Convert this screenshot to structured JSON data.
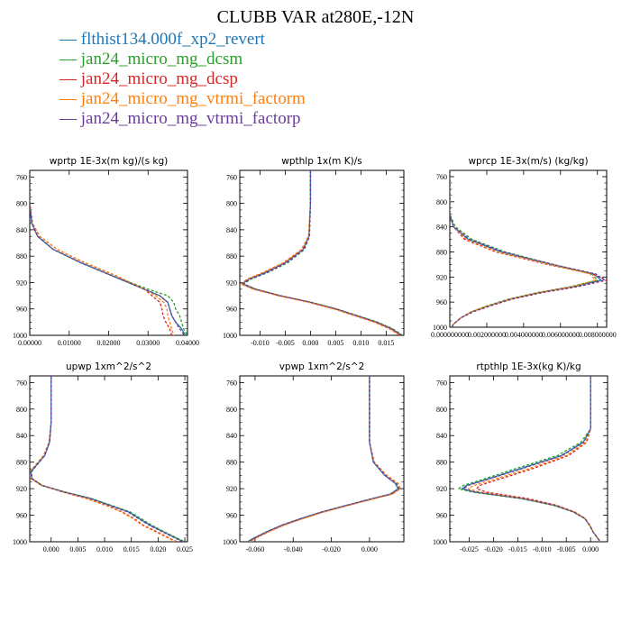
{
  "title": "CLUBB VAR at280E,-12N",
  "legend": [
    {
      "label": "flthist134.000f_xp2_revert",
      "color": "#1f77b4",
      "dash": "solid"
    },
    {
      "label": "jan24_micro_mg_dcsm",
      "color": "#2ca02c",
      "dash": "dashed"
    },
    {
      "label": "jan24_micro_mg_dcsp",
      "color": "#d62728",
      "dash": "dashed"
    },
    {
      "label": "jan24_micro_mg_vtrmi_factorm",
      "color": "#ff7f0e",
      "dash": "dashed"
    },
    {
      "label": "jan24_micro_mg_vtrmi_factorp",
      "color": "#6a3d9a",
      "dash": "dashed"
    }
  ],
  "chart_data": [
    {
      "type": "line",
      "title": "wprtp  1E-3x(m kg)/(s kg)",
      "ylim": [
        1000,
        750
      ],
      "xlim": [
        0.0,
        0.04
      ],
      "yticks": [
        "760",
        "800",
        "840",
        "880",
        "920",
        "960",
        "1000"
      ],
      "xticks": [
        0.0,
        0.01,
        0.02,
        0.03,
        0.04
      ],
      "xticklabels": [
        "0.00000",
        "0.01000",
        "0.02000",
        "0.03000",
        "0.04000"
      ],
      "y": [
        750,
        800,
        830,
        850,
        870,
        890,
        910,
        930,
        940,
        950,
        960,
        970,
        980,
        990,
        1000
      ],
      "series": [
        {
          "values": [
            0,
            0,
            0.0005,
            0.002,
            0.006,
            0.013,
            0.021,
            0.029,
            0.033,
            0.035,
            0.0355,
            0.036,
            0.037,
            0.0385,
            0.0395
          ]
        },
        {
          "values": [
            0,
            0,
            0.0005,
            0.002,
            0.006,
            0.013,
            0.021,
            0.03,
            0.035,
            0.0365,
            0.037,
            0.038,
            0.0385,
            0.039,
            0.04
          ]
        },
        {
          "values": [
            0,
            0,
            0.0007,
            0.0025,
            0.007,
            0.014,
            0.022,
            0.029,
            0.031,
            0.033,
            0.0335,
            0.0338,
            0.0345,
            0.0355,
            0.036
          ]
        },
        {
          "values": [
            0,
            0,
            0.0007,
            0.0025,
            0.007,
            0.014,
            0.022,
            0.029,
            0.032,
            0.034,
            0.0348,
            0.035,
            0.0355,
            0.036,
            0.0365
          ]
        },
        {
          "values": [
            0,
            0,
            0.0005,
            0.002,
            0.006,
            0.013,
            0.021,
            0.029,
            0.033,
            0.035,
            0.0355,
            0.036,
            0.037,
            0.038,
            0.0392
          ]
        }
      ]
    },
    {
      "type": "line",
      "title": "wpthlp  1x(m K)/s",
      "ylim": [
        1000,
        750
      ],
      "xlim": [
        -0.014,
        0.0185
      ],
      "yticks": [
        "760",
        "800",
        "840",
        "880",
        "920",
        "960",
        "1000"
      ],
      "xticks": [
        -0.01,
        -0.005,
        0.0,
        0.005,
        0.01,
        0.015
      ],
      "xticklabels": [
        "-0.010",
        "-0.005",
        "0.000",
        "0.005",
        "0.010",
        "0.015"
      ],
      "y": [
        750,
        800,
        850,
        870,
        890,
        905,
        915,
        922,
        930,
        940,
        950,
        960,
        970,
        980,
        990,
        1000
      ],
      "series": [
        {
          "values": [
            0,
            0,
            -0.0003,
            -0.0015,
            -0.005,
            -0.009,
            -0.0122,
            -0.0135,
            -0.011,
            -0.006,
            0.0,
            0.005,
            0.009,
            0.013,
            0.016,
            0.018
          ]
        },
        {
          "values": [
            0,
            0,
            -0.0002,
            -0.0012,
            -0.0045,
            -0.0085,
            -0.0118,
            -0.0132,
            -0.0108,
            -0.0058,
            0.0002,
            0.0052,
            0.0093,
            0.0133,
            0.0163,
            0.0183
          ]
        },
        {
          "values": [
            0,
            0,
            -0.0003,
            -0.0016,
            -0.0052,
            -0.0093,
            -0.0125,
            -0.0138,
            -0.0112,
            -0.0062,
            -0.0002,
            0.0048,
            0.0088,
            0.0128,
            0.0158,
            0.0178
          ]
        },
        {
          "values": [
            0,
            0,
            -0.0004,
            -0.0018,
            -0.0054,
            -0.0095,
            -0.0126,
            -0.0138,
            -0.0114,
            -0.0064,
            -0.0004,
            0.0046,
            0.0086,
            0.0126,
            0.0156,
            0.0177
          ]
        },
        {
          "values": [
            0,
            0,
            -0.0002,
            -0.0013,
            -0.0047,
            -0.0087,
            -0.012,
            -0.0134,
            -0.0109,
            -0.0059,
            0.0001,
            0.0051,
            0.0091,
            0.0131,
            0.0161,
            0.0181
          ]
        }
      ]
    },
    {
      "type": "line",
      "title": "wprcp  1E-3x(m/s) (kg/kg)",
      "ylim": [
        1000,
        750
      ],
      "xlim": [
        0.0,
        0.0085
      ],
      "yticks": [
        "760",
        "800",
        "840",
        "880",
        "920",
        "960",
        "1000"
      ],
      "xticks": [
        0.0,
        0.002,
        0.004,
        0.006,
        0.008
      ],
      "xticklabels": [
        "0.000000000",
        "0.002000000",
        "0.004000000",
        "0.006000000",
        "0.008000000"
      ],
      "y": [
        750,
        820,
        840,
        860,
        880,
        900,
        915,
        925,
        935,
        945,
        955,
        965,
        975,
        985,
        995,
        1000
      ],
      "series": [
        {
          "values": [
            0,
            0,
            0.0002,
            0.001,
            0.0028,
            0.0055,
            0.0078,
            0.0082,
            0.0068,
            0.0048,
            0.0033,
            0.0022,
            0.0012,
            0.0006,
            0.0002,
            0.0001
          ]
        },
        {
          "values": [
            0,
            0,
            0.0003,
            0.0012,
            0.003,
            0.0056,
            0.0077,
            0.008,
            0.0066,
            0.0047,
            0.0032,
            0.0021,
            0.0012,
            0.0006,
            0.0002,
            0.0001
          ]
        },
        {
          "values": [
            0,
            0,
            0.0002,
            0.0008,
            0.0025,
            0.0053,
            0.0077,
            0.0085,
            0.007,
            0.005,
            0.0034,
            0.0023,
            0.0013,
            0.0006,
            0.0002,
            0.0001
          ]
        },
        {
          "values": [
            0,
            0,
            0.0002,
            0.0009,
            0.0026,
            0.0054,
            0.0076,
            0.0079,
            0.0067,
            0.0048,
            0.0033,
            0.0022,
            0.0012,
            0.0006,
            0.0002,
            0.0001
          ]
        },
        {
          "values": [
            0,
            0,
            0.0002,
            0.0011,
            0.0029,
            0.0056,
            0.0079,
            0.0084,
            0.0069,
            0.0049,
            0.0034,
            0.0023,
            0.0013,
            0.0006,
            0.0002,
            0.0001
          ]
        }
      ]
    },
    {
      "type": "line",
      "title": "upwp  1xm^2/s^2",
      "ylim": [
        1000,
        750
      ],
      "xlim": [
        -0.004,
        0.0255
      ],
      "yticks": [
        "760",
        "800",
        "840",
        "880",
        "920",
        "960",
        "1000"
      ],
      "xticks": [
        0.0,
        0.005,
        0.01,
        0.015,
        0.02,
        0.025
      ],
      "xticklabels": [
        "0.000",
        "0.005",
        "0.010",
        "0.015",
        "0.020",
        "0.025"
      ],
      "y": [
        750,
        820,
        850,
        870,
        885,
        895,
        905,
        915,
        925,
        935,
        945,
        955,
        965,
        975,
        985,
        995,
        1000
      ],
      "series": [
        {
          "values": [
            0,
            0,
            -0.0003,
            -0.0012,
            -0.0028,
            -0.0038,
            -0.0036,
            -0.0018,
            0.0025,
            0.0075,
            0.011,
            0.0145,
            0.0165,
            0.0185,
            0.021,
            0.0235,
            0.0248
          ]
        },
        {
          "values": [
            0,
            0,
            -0.0003,
            -0.0012,
            -0.0027,
            -0.0037,
            -0.0035,
            -0.0017,
            0.0026,
            0.0076,
            0.0112,
            0.0148,
            0.0168,
            0.0188,
            0.0212,
            0.0237,
            0.025
          ]
        },
        {
          "values": [
            0,
            0,
            -0.0004,
            -0.0014,
            -0.003,
            -0.004,
            -0.0037,
            -0.0016,
            0.0022,
            0.0068,
            0.0103,
            0.0133,
            0.0155,
            0.0172,
            0.0198,
            0.0222,
            0.0235
          ]
        },
        {
          "values": [
            0,
            0,
            -0.0004,
            -0.0014,
            -0.003,
            -0.004,
            -0.0038,
            -0.0018,
            0.0021,
            0.0066,
            0.0101,
            0.0131,
            0.0153,
            0.017,
            0.0195,
            0.022,
            0.0232
          ]
        },
        {
          "values": [
            0,
            0,
            -0.0003,
            -0.0012,
            -0.0028,
            -0.0038,
            -0.0036,
            -0.0017,
            0.0024,
            0.0074,
            0.0109,
            0.0143,
            0.0163,
            0.0183,
            0.0208,
            0.0233,
            0.0246
          ]
        }
      ]
    },
    {
      "type": "line",
      "title": "vpwp  1xm^2/s^2",
      "ylim": [
        1000,
        750
      ],
      "xlim": [
        -0.068,
        0.018
      ],
      "yticks": [
        "760",
        "800",
        "840",
        "880",
        "920",
        "960",
        "1000"
      ],
      "xticks": [
        -0.06,
        -0.04,
        -0.02,
        0.0
      ],
      "xticklabels": [
        "-0.060",
        "-0.040",
        "-0.020",
        "0.000"
      ],
      "y": [
        750,
        850,
        880,
        900,
        912,
        920,
        928,
        936,
        945,
        955,
        965,
        975,
        985,
        995,
        1000
      ],
      "series": [
        {
          "values": [
            0,
            0,
            0.002,
            0.008,
            0.0135,
            0.015,
            0.011,
            0.0,
            -0.012,
            -0.025,
            -0.036,
            -0.046,
            -0.054,
            -0.061,
            -0.064
          ]
        },
        {
          "values": [
            0,
            0,
            0.0022,
            0.0085,
            0.014,
            0.0155,
            0.0115,
            0.0005,
            -0.0115,
            -0.0245,
            -0.0355,
            -0.0455,
            -0.0535,
            -0.0605,
            -0.0635
          ]
        },
        {
          "values": [
            0,
            0,
            0.0025,
            0.009,
            0.0148,
            0.016,
            0.012,
            0.001,
            -0.011,
            -0.024,
            -0.035,
            -0.045,
            -0.053,
            -0.06,
            -0.063
          ]
        },
        {
          "values": [
            0,
            0,
            0.0025,
            0.0092,
            0.015,
            0.0162,
            0.0122,
            0.0012,
            -0.0108,
            -0.0238,
            -0.0348,
            -0.0448,
            -0.0528,
            -0.0598,
            -0.0628
          ]
        },
        {
          "values": [
            0,
            0,
            0.0021,
            0.0083,
            0.0138,
            0.0153,
            0.0112,
            0.0002,
            -0.0118,
            -0.0248,
            -0.0358,
            -0.0458,
            -0.0538,
            -0.0608,
            -0.0638
          ]
        }
      ]
    },
    {
      "type": "line",
      "title": "rtpthlp  1E-3x(kg K)/kg",
      "ylim": [
        1000,
        750
      ],
      "xlim": [
        -0.029,
        0.0035
      ],
      "yticks": [
        "760",
        "800",
        "840",
        "880",
        "920",
        "960",
        "1000"
      ],
      "xticks": [
        -0.025,
        -0.02,
        -0.015,
        -0.01,
        -0.005,
        0.0
      ],
      "xticklabels": [
        "-0.025",
        "-0.020",
        "-0.015",
        "-0.010",
        "-0.005",
        "0.000"
      ],
      "y": [
        750,
        830,
        850,
        870,
        890,
        905,
        915,
        920,
        925,
        935,
        945,
        955,
        965,
        975,
        985,
        995,
        1000
      ],
      "series": [
        {
          "values": [
            0,
            0,
            -0.0015,
            -0.006,
            -0.0145,
            -0.021,
            -0.0255,
            -0.0265,
            -0.024,
            -0.014,
            -0.0075,
            -0.0035,
            -0.0012,
            -0.0002,
            0.0005,
            0.0015,
            0.002
          ]
        },
        {
          "values": [
            0,
            0,
            -0.002,
            -0.0068,
            -0.0155,
            -0.0218,
            -0.0262,
            -0.0272,
            -0.0245,
            -0.0143,
            -0.0077,
            -0.0036,
            -0.0012,
            -0.0002,
            0.0005,
            0.0015,
            0.002
          ]
        },
        {
          "values": [
            0,
            0,
            -0.0008,
            -0.0045,
            -0.012,
            -0.0185,
            -0.0228,
            -0.0235,
            -0.0215,
            -0.0128,
            -0.007,
            -0.0033,
            -0.0011,
            -0.0002,
            0.0005,
            0.0015,
            0.002
          ]
        },
        {
          "values": [
            0,
            0,
            -0.001,
            -0.005,
            -0.0128,
            -0.0195,
            -0.024,
            -0.0252,
            -0.023,
            -0.0135,
            -0.0072,
            -0.0034,
            -0.0011,
            -0.0002,
            0.0005,
            0.0015,
            0.002
          ]
        },
        {
          "values": [
            0,
            0,
            -0.0014,
            -0.0058,
            -0.0142,
            -0.0208,
            -0.0252,
            -0.0262,
            -0.0238,
            -0.0139,
            -0.0074,
            -0.0035,
            -0.0012,
            -0.0002,
            0.0005,
            0.0015,
            0.002
          ]
        }
      ]
    }
  ]
}
